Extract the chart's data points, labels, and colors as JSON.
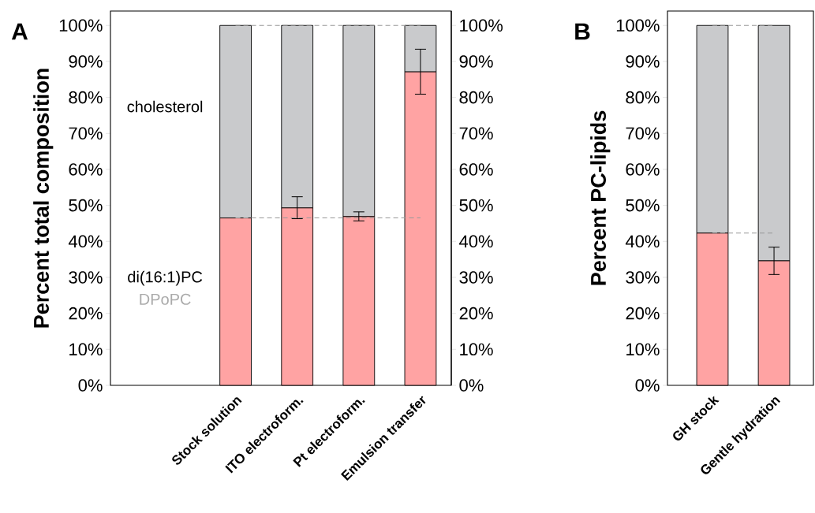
{
  "chart_data": [
    {
      "type": "bar",
      "stacked": true,
      "ylabel": "Percent total composition",
      "categories": [
        "Stock solution",
        "ITO electroform.",
        "Pt electroform.",
        "Emulsion transfer"
      ],
      "series": [
        {
          "name": "di(16:1)PC",
          "color": "#ffa3a3",
          "values": [
            46.5,
            49.3,
            46.9,
            87.1
          ],
          "errors": [
            null,
            [
              46.3,
              52.4
            ],
            [
              45.7,
              48.2
            ],
            [
              80.9,
              93.4
            ]
          ]
        },
        {
          "name": "cholesterol",
          "color": "#c9cacc",
          "values": [
            53.5,
            50.7,
            53.1,
            12.9
          ]
        }
      ],
      "ylim": [
        0,
        104
      ],
      "yticks": [
        {
          "value": 0,
          "label": "0%"
        },
        {
          "value": 10,
          "label": "10%"
        },
        {
          "value": 20,
          "label": "20%"
        },
        {
          "value": 30,
          "label": "30%"
        },
        {
          "value": 40,
          "label": "40%"
        },
        {
          "value": 50,
          "label": "50%"
        },
        {
          "value": 60,
          "label": "60%"
        },
        {
          "value": 70,
          "label": "70%"
        },
        {
          "value": 80,
          "label": "80%"
        },
        {
          "value": 90,
          "label": "90%"
        },
        {
          "value": 100,
          "label": "100%"
        }
      ],
      "y2lim": [
        0,
        104
      ],
      "y2ticks": [
        {
          "value": 0,
          "label": "0%"
        },
        {
          "value": 10,
          "label": "10%"
        },
        {
          "value": 20,
          "label": "20%"
        },
        {
          "value": 30,
          "label": "30%"
        },
        {
          "value": 40,
          "label": "40%"
        },
        {
          "value": 50,
          "label": "50%"
        },
        {
          "value": 60,
          "label": "60%"
        },
        {
          "value": 70,
          "label": "70%"
        },
        {
          "value": 80,
          "label": "80%"
        },
        {
          "value": 90,
          "label": "90%"
        },
        {
          "value": 100,
          "label": "100%"
        }
      ],
      "ref_lines": [
        {
          "axis": "y",
          "value": 100,
          "color": "#999999",
          "line_style": "dashed"
        },
        {
          "axis": "y",
          "value": 46.5,
          "color": "#999999",
          "line_style": "dashed"
        }
      ],
      "annotations": [
        "A",
        "DPoPC"
      ]
    },
    {
      "type": "bar",
      "stacked": true,
      "ylabel": "Percent PC-lipids",
      "categories": [
        "GH stock",
        "Gentle hydration"
      ],
      "series": [
        {
          "color": "#ffa3a3",
          "values": [
            42.3,
            34.6
          ],
          "errors": [
            null,
            [
              30.8,
              38.4
            ]
          ]
        },
        {
          "color": "#c9cacc",
          "values": [
            57.7,
            65.4
          ]
        }
      ],
      "ylim": [
        0,
        104
      ],
      "yticks": [
        {
          "value": 0,
          "label": "0%"
        },
        {
          "value": 10,
          "label": "10%"
        },
        {
          "value": 20,
          "label": "20%"
        },
        {
          "value": 30,
          "label": "30%"
        },
        {
          "value": 40,
          "label": "40%"
        },
        {
          "value": 50,
          "label": "50%"
        },
        {
          "value": 60,
          "label": "60%"
        },
        {
          "value": 70,
          "label": "70%"
        },
        {
          "value": 80,
          "label": "80%"
        },
        {
          "value": 90,
          "label": "90%"
        },
        {
          "value": 100,
          "label": "100%"
        }
      ],
      "ref_lines": [
        {
          "axis": "y",
          "value": 100,
          "color": "#999999",
          "line_style": "dashed"
        },
        {
          "axis": "y",
          "value": 42.3,
          "color": "#999999",
          "line_style": "dashed"
        }
      ],
      "annotations": [
        "B"
      ]
    }
  ]
}
